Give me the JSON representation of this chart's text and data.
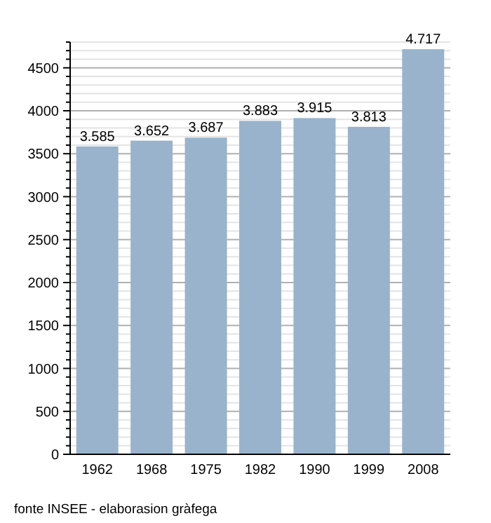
{
  "chart_data": {
    "type": "bar",
    "categories": [
      "1962",
      "1968",
      "1975",
      "1982",
      "1990",
      "1999",
      "2008"
    ],
    "values": [
      3585,
      3652,
      3687,
      3883,
      3915,
      3813,
      4717
    ],
    "value_labels": [
      "3.585",
      "3.652",
      "3.687",
      "3.883",
      "3.915",
      "3.813",
      "4.717"
    ],
    "color": "#99b3cc",
    "ylim": [
      0,
      4800
    ],
    "yticks": [
      0,
      {
        "value": 100,
        "label": null
      },
      {
        "value": 200,
        "label": null
      },
      {
        "value": 300,
        "label": null
      },
      {
        "value": 400,
        "label": null
      },
      500,
      {
        "value": 600,
        "label": null
      },
      {
        "value": 700,
        "label": null
      },
      {
        "value": 800,
        "label": null
      },
      {
        "value": 900,
        "label": null
      },
      1000,
      {
        "value": 1100,
        "label": null
      },
      {
        "value": 1200,
        "label": null
      },
      {
        "value": 1300,
        "label": null
      },
      {
        "value": 1400,
        "label": null
      },
      1500,
      {
        "value": 1600,
        "label": null
      },
      {
        "value": 1700,
        "label": null
      },
      {
        "value": 1800,
        "label": null
      },
      {
        "value": 1900,
        "label": null
      },
      2000,
      {
        "value": 2100,
        "label": null
      },
      {
        "value": 2200,
        "label": null
      },
      {
        "value": 2300,
        "label": null
      },
      {
        "value": 2400,
        "label": null
      },
      2500,
      {
        "value": 2600,
        "label": null
      },
      {
        "value": 2700,
        "label": null
      },
      {
        "value": 2800,
        "label": null
      },
      {
        "value": 2900,
        "label": null
      },
      3000,
      {
        "value": 3100,
        "label": null
      },
      {
        "value": 3200,
        "label": null
      },
      {
        "value": 3300,
        "label": null
      },
      {
        "value": 3400,
        "label": null
      },
      3500,
      {
        "value": 3600,
        "label": null
      },
      {
        "value": 3700,
        "label": null
      },
      {
        "value": 3800,
        "label": null
      },
      {
        "value": 3900,
        "label": null
      },
      4000,
      {
        "value": 4100,
        "label": null
      },
      {
        "value": 4200,
        "label": null
      },
      {
        "value": 4300,
        "label": null
      },
      {
        "value": 4400,
        "label": null
      },
      4500,
      {
        "value": 4600,
        "label": null
      },
      {
        "value": 4700,
        "label": null
      },
      {
        "value": 4800,
        "label": null
      }
    ],
    "grid": true,
    "annotations": [
      "fonte INSEE - elaborasion gràfega"
    ]
  }
}
